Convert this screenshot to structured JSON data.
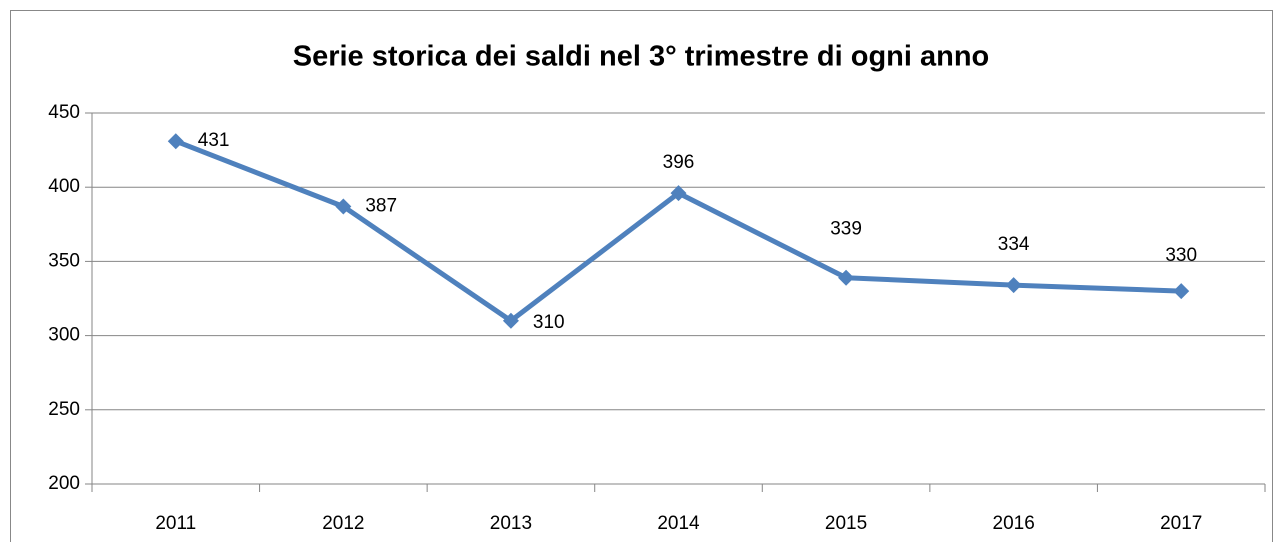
{
  "chart_data": {
    "type": "line",
    "title": "Serie storica dei saldi nel 3° trimestre di ogni anno",
    "categories": [
      "2011",
      "2012",
      "2013",
      "2014",
      "2015",
      "2016",
      "2017"
    ],
    "values": [
      431,
      387,
      310,
      396,
      339,
      334,
      330
    ],
    "color": "#4f81bd",
    "ylim": [
      200,
      450
    ],
    "yticks": [
      200,
      250,
      300,
      350,
      400,
      450
    ],
    "grid": true
  }
}
